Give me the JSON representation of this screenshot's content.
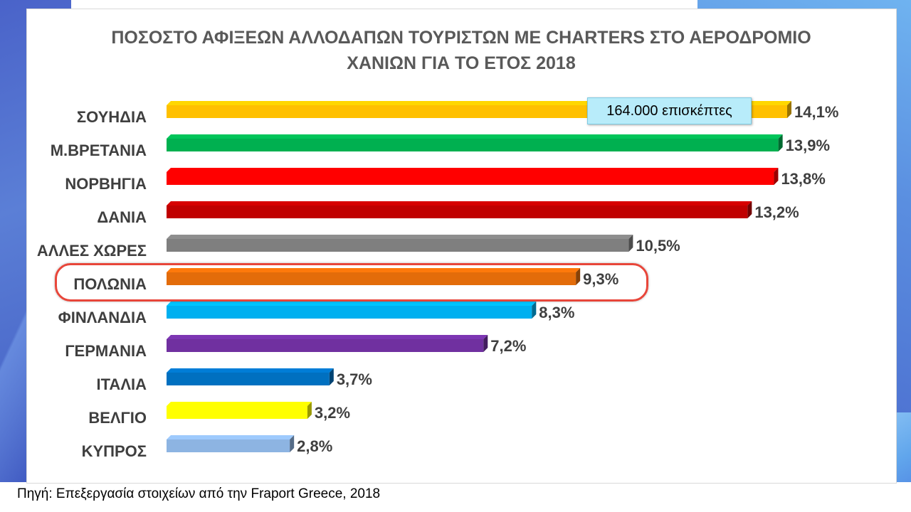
{
  "chart_data": {
    "type": "bar",
    "orientation": "horizontal",
    "title_lines": [
      "ΠΟΣΟΣΤΟ ΑΦΙΞΕΩΝ ΑΛΛΟΔΑΠΩΝ ΤΟΥΡΙΣΤΩΝ ΜΕ CHARTERS ΣΤΟ ΑΕΡΟΔΡΟΜΙΟ",
      "ΧΑΝΙΩΝ ΓΙΑ ΤΟ ΕΤΟΣ 2018"
    ],
    "categories": [
      "ΣΟΥΗΔΙΑ",
      "Μ.ΒΡΕΤΑΝΙΑ",
      "ΝΟΡΒΗΓΙΑ",
      "ΔΑΝΙΑ",
      "ΑΛΛΕΣ ΧΩΡΕΣ",
      "ΠΟΛΩΝΙΑ",
      "ΦΙΝΛΑΝΔΙΑ",
      "ΓΕΡΜΑΝΙΑ",
      "ΙΤΑΛΙΑ",
      "ΒΕΛΓΙΟ",
      "ΚΥΠΡΟΣ"
    ],
    "values": [
      14.1,
      13.9,
      13.8,
      13.2,
      10.5,
      9.3,
      8.3,
      7.2,
      3.7,
      3.2,
      2.8
    ],
    "value_labels": [
      "14,1%",
      "13,9%",
      "13,8%",
      "13,2%",
      "10,5%",
      "9,3%",
      "8,3%",
      "7,2%",
      "3,7%",
      "3,2%",
      "2,8%"
    ],
    "colors": [
      "#ffc000",
      "#00b050",
      "#ff0000",
      "#c00000",
      "#7f7f7f",
      "#e36c0a",
      "#00b0f0",
      "#7030a0",
      "#0070c0",
      "#ffff00",
      "#8db4e2"
    ],
    "xlim": [
      0,
      14.1
    ],
    "grid": false,
    "legend": "none",
    "highlighted_category": "ΠΟΛΩΝΙΑ",
    "annotations": [
      {
        "text": "164.000 επισκέπτες",
        "category": "ΣΟΥΗΔΙΑ",
        "fill_color": "#b8ecfa"
      }
    ]
  },
  "source_note": "Πηγή: Επεξεργασία στοιχείων από την Fraport Greece, 2018"
}
